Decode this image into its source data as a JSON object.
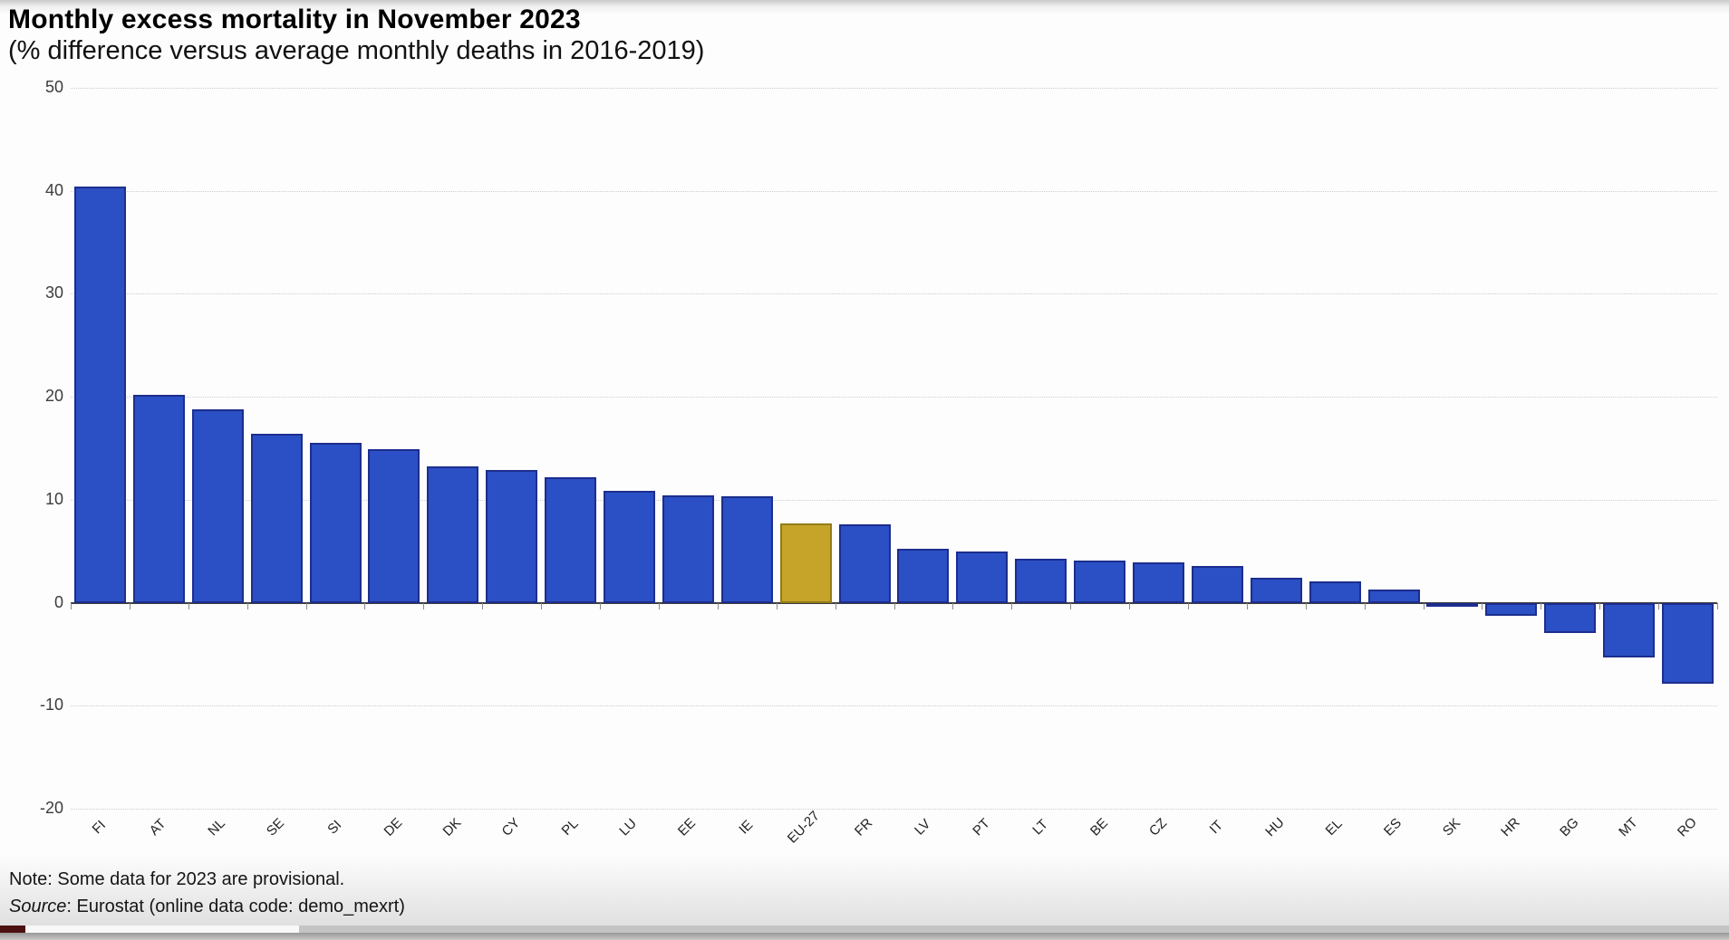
{
  "header": {
    "title": "Monthly excess mortality in November 2023",
    "subtitle": "(% difference versus average monthly deaths in 2016-2019)"
  },
  "footer": {
    "note": "Note: Some data for 2023 are provisional.",
    "source_label": "Source",
    "source_rest": ": Eurostat (online data code: demo_mexrt)"
  },
  "chart_data": {
    "type": "bar",
    "title": "Monthly excess mortality in November 2023",
    "subtitle": "(% difference versus average monthly deaths in 2016-2019)",
    "xlabel": "",
    "ylabel": "% difference vs average monthly deaths 2016-2019",
    "categories": [
      "FI",
      "AT",
      "NL",
      "SE",
      "SI",
      "DE",
      "DK",
      "CY",
      "PL",
      "LU",
      "EE",
      "IE",
      "EU-27",
      "FR",
      "LV",
      "PT",
      "LT",
      "BE",
      "CZ",
      "IT",
      "HU",
      "EL",
      "ES",
      "SK",
      "HR",
      "BG",
      "MT",
      "RO"
    ],
    "values": [
      40.4,
      20.2,
      18.8,
      16.4,
      15.5,
      14.9,
      13.2,
      12.9,
      12.2,
      10.9,
      10.4,
      10.3,
      7.7,
      7.6,
      5.2,
      5.0,
      4.3,
      4.1,
      3.9,
      3.6,
      2.4,
      2.1,
      1.3,
      -0.2,
      -1.3,
      -2.9,
      -5.3,
      -7.9
    ],
    "highlight_category": "EU-27",
    "ylim": [
      -20,
      50
    ],
    "yticks": [
      50,
      40,
      30,
      20,
      10,
      0,
      -10,
      -20
    ],
    "grid": "horizontal dotted",
    "legend": "none",
    "colors": {
      "bar": "#2b4fc4",
      "bar_border": "#1d2e8e",
      "highlight": "#c6a42a",
      "highlight_border": "#937c18",
      "gridline": "#cdcdcd",
      "axis": "#3f3f3f"
    }
  },
  "video_chrome": {
    "progress_played_color": "#4d1111",
    "progress_buffered_color": "#f8f8f8",
    "progress_track_color": "#c4c4c4"
  }
}
